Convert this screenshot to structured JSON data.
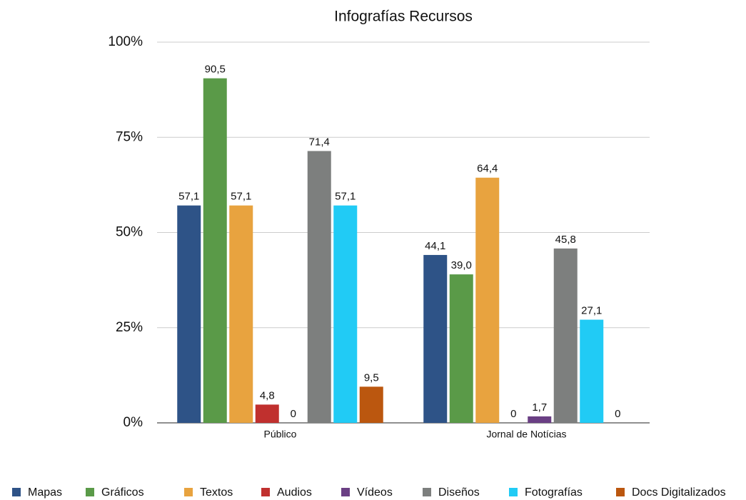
{
  "chart_data": {
    "type": "bar",
    "title": "Infografías Recursos",
    "categories": [
      "Público",
      "Jornal de Notícias"
    ],
    "series": [
      {
        "name": "Mapas",
        "color": "#2e5387",
        "values": [
          57.1,
          44.1
        ],
        "value_labels": [
          "57,1",
          "44,1"
        ]
      },
      {
        "name": "Gráficos",
        "color": "#5a9a48",
        "values": [
          90.5,
          39.0
        ],
        "value_labels": [
          "90,5",
          "39,0"
        ]
      },
      {
        "name": "Textos",
        "color": "#e8a33f",
        "values": [
          57.1,
          64.4
        ],
        "value_labels": [
          "57,1",
          "64,4"
        ]
      },
      {
        "name": "Audios",
        "color": "#c0302e",
        "values": [
          4.8,
          0
        ],
        "value_labels": [
          "4,8",
          "0"
        ]
      },
      {
        "name": "Vídeos",
        "color": "#6a3f84",
        "values": [
          0,
          1.7
        ],
        "value_labels": [
          "0",
          "1,7"
        ]
      },
      {
        "name": "Diseños",
        "color": "#7d7f7e",
        "values": [
          71.4,
          45.8
        ],
        "value_labels": [
          "71,4",
          "45,8"
        ]
      },
      {
        "name": "Fotografías",
        "color": "#21cbf5",
        "values": [
          57.1,
          27.1
        ],
        "value_labels": [
          "57,1",
          "27,1"
        ]
      },
      {
        "name": "Docs Digitalizados",
        "color": "#bb570f",
        "values": [
          9.5,
          0
        ],
        "value_labels": [
          "9,5",
          "0"
        ]
      }
    ],
    "ylim": [
      0,
      100
    ],
    "yticks": [
      {
        "value": 0,
        "label": "0%"
      },
      {
        "value": 25,
        "label": "25%"
      },
      {
        "value": 50,
        "label": "50%"
      },
      {
        "value": 75,
        "label": "75%"
      },
      {
        "value": 100,
        "label": "100%"
      }
    ],
    "grid": true,
    "legend": "bottom"
  }
}
